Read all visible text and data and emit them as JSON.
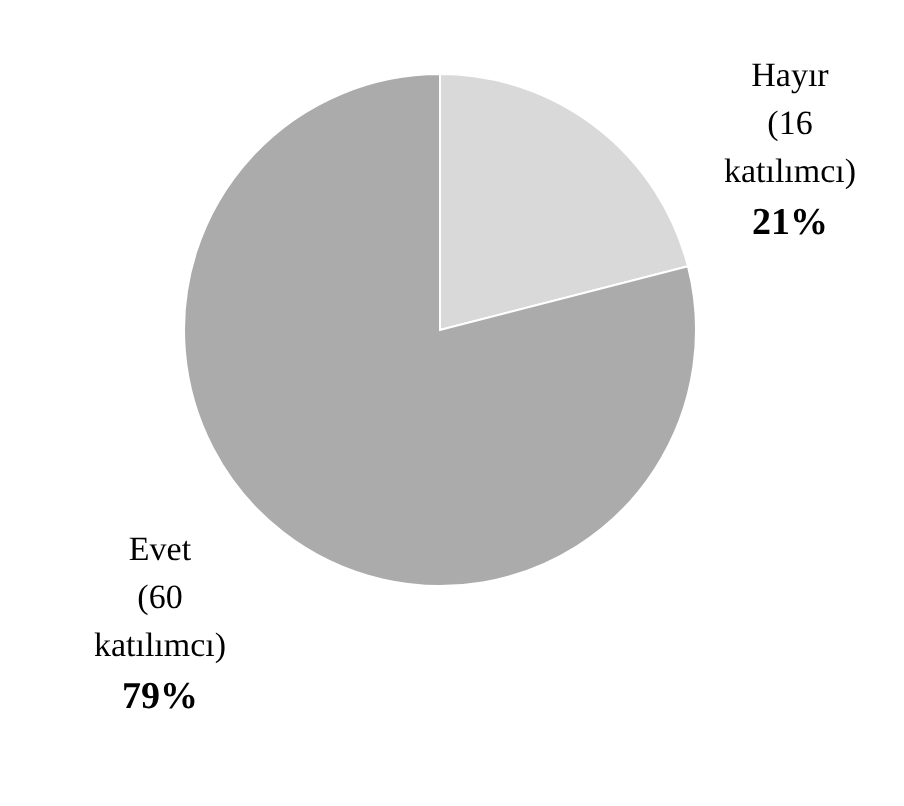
{
  "chart_data": {
    "type": "pie",
    "categories": [
      "Hayır (16 katılımcı)",
      "Evet (60 katılımcı)"
    ],
    "values": [
      21,
      79
    ],
    "value_labels": [
      "21%",
      "79%"
    ],
    "colors": [
      "#d9d9d9",
      "#ababab"
    ]
  }
}
